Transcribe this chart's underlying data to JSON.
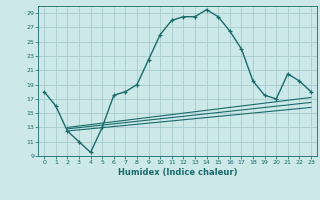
{
  "xlabel": "Humidex (Indice chaleur)",
  "bg_color": "#cce8e8",
  "grid_color": "#aacccc",
  "line_color": "#1a6b6b",
  "xlim": [
    -0.5,
    23.5
  ],
  "ylim": [
    9,
    30
  ],
  "xticks": [
    0,
    1,
    2,
    3,
    4,
    5,
    6,
    7,
    8,
    9,
    10,
    11,
    12,
    13,
    14,
    15,
    16,
    17,
    18,
    19,
    20,
    21,
    22,
    23
  ],
  "yticks": [
    9,
    11,
    13,
    15,
    17,
    19,
    21,
    23,
    25,
    27,
    29
  ],
  "main_curve_x": [
    0,
    1,
    2,
    3,
    4,
    5,
    6,
    7,
    8,
    9,
    10,
    11,
    12,
    13,
    14,
    15,
    16,
    17,
    18,
    19,
    20,
    21,
    22,
    23
  ],
  "main_curve_y": [
    18,
    16,
    12.5,
    11,
    9.5,
    13,
    17.5,
    18,
    19,
    22.5,
    26,
    28,
    28.5,
    28.5,
    29.5,
    28.5,
    26.5,
    24,
    19.5,
    17.5,
    17,
    20.5,
    19.5,
    18
  ],
  "line1_x": [
    2,
    23
  ],
  "line1_y": [
    13.0,
    17.2
  ],
  "line2_x": [
    2,
    23
  ],
  "line2_y": [
    12.8,
    16.5
  ],
  "line3_x": [
    2,
    23
  ],
  "line3_y": [
    12.5,
    15.8
  ]
}
